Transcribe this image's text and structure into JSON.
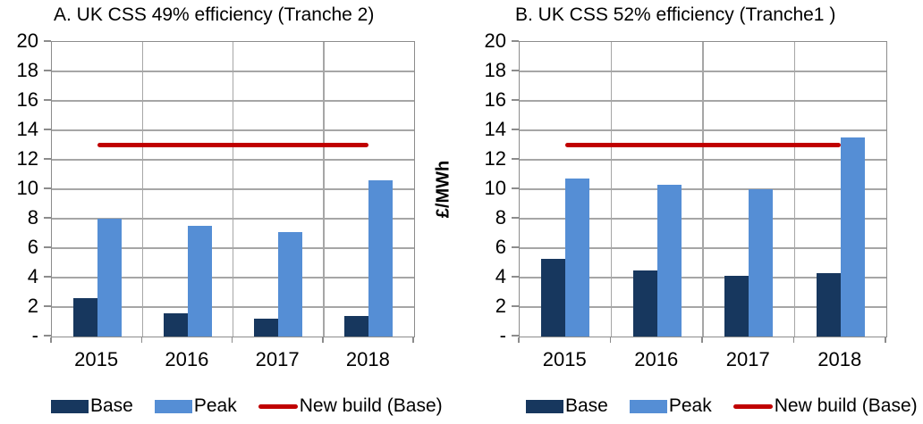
{
  "ylabel": "£/MWh",
  "colors": {
    "base": "#17375E",
    "peak": "#558ED5",
    "new_build": "#C00000",
    "gridline": "#A6A6A6",
    "axis": "#8C8C8C"
  },
  "legend": {
    "items": [
      {
        "label": "Base",
        "type": "swatch",
        "color_key": "base"
      },
      {
        "label": "Peak",
        "type": "swatch",
        "color_key": "peak"
      },
      {
        "label": "New build (Base)",
        "type": "line",
        "color_key": "new_build"
      }
    ]
  },
  "chart_data": [
    {
      "type": "bar",
      "title": "A. UK CSS 49% efficiency (Tranche 2)",
      "categories": [
        "2015",
        "2016",
        "2017",
        "2018"
      ],
      "series": [
        {
          "name": "Base",
          "type": "bar",
          "color_key": "base",
          "values": [
            2.6,
            1.6,
            1.2,
            1.4
          ]
        },
        {
          "name": "Peak",
          "type": "bar",
          "color_key": "peak",
          "values": [
            8.0,
            7.5,
            7.1,
            10.6
          ]
        },
        {
          "name": "New build (Base)",
          "type": "line",
          "color_key": "new_build",
          "values": [
            13,
            13,
            13,
            13
          ]
        }
      ],
      "xlabel": "",
      "ylabel": "£/MWh",
      "ylim": [
        0,
        20
      ],
      "ytick_step": 2,
      "zero_label": "-",
      "grid": true,
      "legend_position": "bottom"
    },
    {
      "type": "bar",
      "title": "B. UK CSS 52% efficiency (Tranche1 )",
      "categories": [
        "2015",
        "2016",
        "2017",
        "2018"
      ],
      "series": [
        {
          "name": "Base",
          "type": "bar",
          "color_key": "base",
          "values": [
            5.3,
            4.5,
            4.1,
            4.3
          ]
        },
        {
          "name": "Peak",
          "type": "bar",
          "color_key": "peak",
          "values": [
            10.7,
            10.3,
            10.0,
            13.5
          ]
        },
        {
          "name": "New build (Base)",
          "type": "line",
          "color_key": "new_build",
          "values": [
            13,
            13,
            13,
            13
          ]
        }
      ],
      "xlabel": "",
      "ylabel": "£/MWh",
      "ylim": [
        0,
        20
      ],
      "ytick_step": 2,
      "zero_label": "-",
      "grid": true,
      "legend_position": "bottom"
    }
  ]
}
